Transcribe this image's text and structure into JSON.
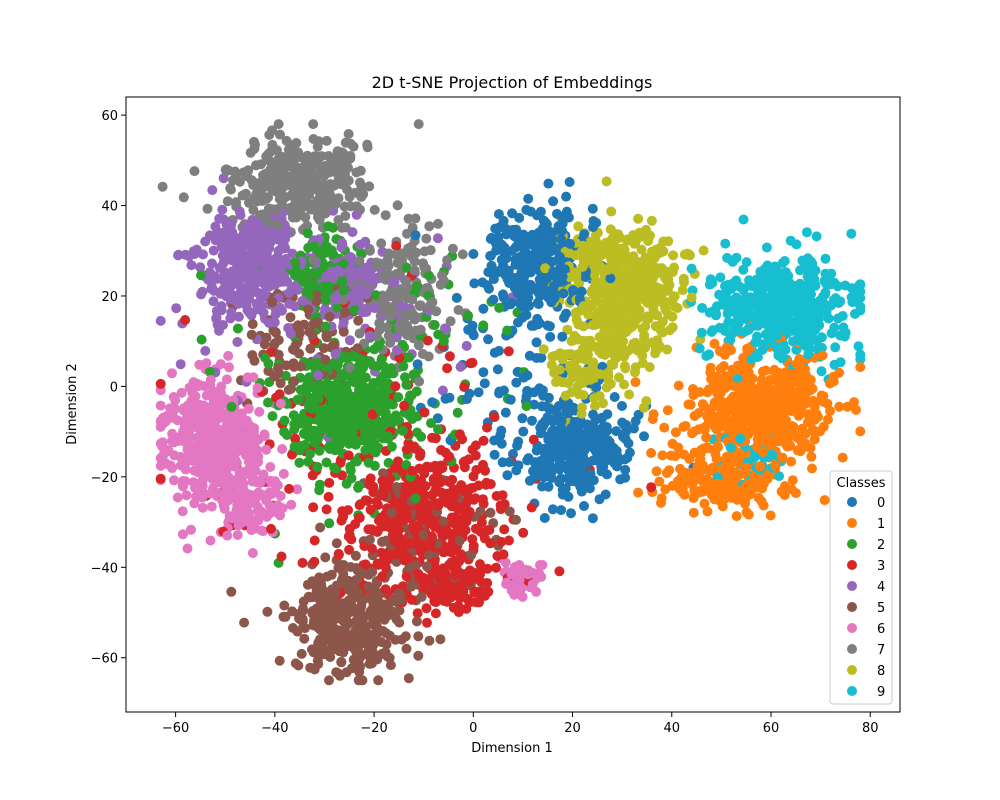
{
  "chart_data": {
    "type": "scatter",
    "title": "2D t-SNE Projection of Embeddings",
    "xlabel": "Dimension 1",
    "ylabel": "Dimension 2",
    "xlim": [
      -70,
      86
    ],
    "ylim": [
      -72,
      64
    ],
    "xticks": [
      -60,
      -40,
      -20,
      0,
      20,
      40,
      60,
      80
    ],
    "yticks": [
      -60,
      -40,
      -20,
      0,
      20,
      40,
      60
    ],
    "xtick_labels": [
      "−60",
      "−40",
      "−20",
      "0",
      "20",
      "40",
      "60",
      "80"
    ],
    "ytick_labels": [
      "−60",
      "−40",
      "−20",
      "0",
      "20",
      "40",
      "60"
    ],
    "grid": false,
    "legend": {
      "title": "Classes",
      "placement": "lower-right"
    },
    "series": [
      {
        "name": "0",
        "color": "#1f77b4",
        "clusters": [
          {
            "cx": 13,
            "cy": 27,
            "sx": 5,
            "sy": 6,
            "n": 320
          },
          {
            "cx": 20,
            "cy": -13,
            "sx": 6,
            "sy": 6,
            "n": 300
          },
          {
            "cx": 5,
            "cy": 5,
            "sx": 10,
            "sy": 10,
            "n": 60
          }
        ]
      },
      {
        "name": "1",
        "color": "#ff7f0e",
        "clusters": [
          {
            "cx": 58,
            "cy": -5,
            "sx": 7,
            "sy": 6,
            "n": 480
          },
          {
            "cx": 50,
            "cy": -20,
            "sx": 6,
            "sy": 4,
            "n": 180
          }
        ]
      },
      {
        "name": "2",
        "color": "#2ca02c",
        "clusters": [
          {
            "cx": -25,
            "cy": -5,
            "sx": 6,
            "sy": 6,
            "n": 420
          },
          {
            "cx": -30,
            "cy": 25,
            "sx": 3,
            "sy": 4,
            "n": 120
          },
          {
            "cx": -20,
            "cy": 0,
            "sx": 15,
            "sy": 15,
            "n": 120
          }
        ]
      },
      {
        "name": "3",
        "color": "#d62728",
        "clusters": [
          {
            "cx": -10,
            "cy": -30,
            "sx": 8,
            "sy": 8,
            "n": 420
          },
          {
            "cx": -4,
            "cy": -44,
            "sx": 3,
            "sy": 3,
            "n": 100
          },
          {
            "cx": -20,
            "cy": -10,
            "sx": 18,
            "sy": 15,
            "n": 120
          }
        ]
      },
      {
        "name": "4",
        "color": "#9467bd",
        "clusters": [
          {
            "cx": -45,
            "cy": 27,
            "sx": 5,
            "sy": 6,
            "n": 320
          },
          {
            "cx": -25,
            "cy": 22,
            "sx": 4,
            "sy": 4,
            "n": 120
          },
          {
            "cx": -30,
            "cy": 15,
            "sx": 15,
            "sy": 12,
            "n": 80
          }
        ]
      },
      {
        "name": "5",
        "color": "#8c564b",
        "clusters": [
          {
            "cx": -25,
            "cy": -52,
            "sx": 6,
            "sy": 6,
            "n": 360
          },
          {
            "cx": -35,
            "cy": 10,
            "sx": 6,
            "sy": 6,
            "n": 100
          },
          {
            "cx": -10,
            "cy": -35,
            "sx": 8,
            "sy": 6,
            "n": 80
          }
        ]
      },
      {
        "name": "6",
        "color": "#e377c2",
        "clusters": [
          {
            "cx": -53,
            "cy": -12,
            "sx": 5,
            "sy": 7,
            "n": 420
          },
          {
            "cx": -45,
            "cy": -25,
            "sx": 4,
            "sy": 4,
            "n": 120
          },
          {
            "cx": 10,
            "cy": -43,
            "sx": 2,
            "sy": 2,
            "n": 50
          }
        ]
      },
      {
        "name": "7",
        "color": "#7f7f7f",
        "clusters": [
          {
            "cx": -35,
            "cy": 45,
            "sx": 7,
            "sy": 5,
            "n": 350
          },
          {
            "cx": -15,
            "cy": 20,
            "sx": 5,
            "sy": 8,
            "n": 180
          }
        ]
      },
      {
        "name": "8",
        "color": "#bcbd22",
        "clusters": [
          {
            "cx": 30,
            "cy": 22,
            "sx": 6,
            "sy": 7,
            "n": 480
          },
          {
            "cx": 25,
            "cy": 5,
            "sx": 5,
            "sy": 5,
            "n": 120
          }
        ]
      },
      {
        "name": "9",
        "color": "#17becf",
        "clusters": [
          {
            "cx": 62,
            "cy": 17,
            "sx": 7,
            "sy": 6,
            "n": 480
          },
          {
            "cx": 57,
            "cy": -15,
            "sx": 3,
            "sy": 3,
            "n": 40
          }
        ]
      }
    ]
  }
}
